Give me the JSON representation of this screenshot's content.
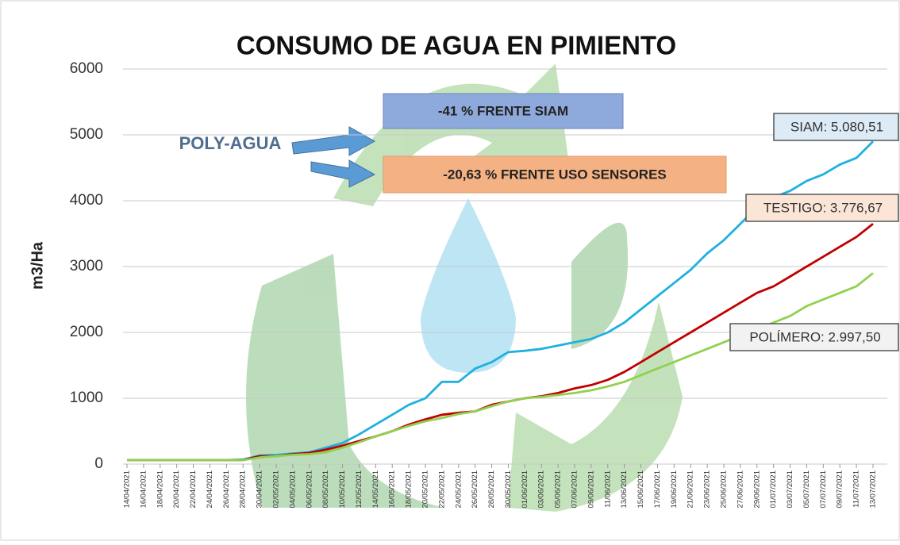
{
  "chart_data": {
    "type": "line",
    "title": "CONSUMO DE AGUA EN PIMIENTO",
    "y_label": "m3/Ha",
    "annotations": [
      "POLY-AGUA",
      "-41 % FRENTE SIAM",
      "-20,63 % FRENTE USO SENSORES"
    ],
    "categories": [
      "14/04/2021",
      "16/04/2021",
      "18/04/2021",
      "20/04/2021",
      "22/04/2021",
      "24/04/2021",
      "26/04/2021",
      "28/04/2021",
      "30/04/2021",
      "02/05/2021",
      "04/05/2021",
      "06/05/2021",
      "08/05/2021",
      "10/05/2021",
      "12/05/2021",
      "14/05/2021",
      "16/05/2021",
      "18/05/2021",
      "20/05/2021",
      "22/05/2021",
      "24/05/2021",
      "26/05/2021",
      "28/05/2021",
      "30/05/2021",
      "01/06/2021",
      "03/06/2021",
      "05/06/2021",
      "07/06/2021",
      "09/06/2021",
      "11/06/2021",
      "13/06/2021",
      "15/06/2021",
      "17/06/2021",
      "19/06/2021",
      "21/06/2021",
      "23/06/2021",
      "25/06/2021",
      "27/06/2021",
      "29/06/2021",
      "01/07/2021",
      "03/07/2021",
      "05/07/2021",
      "07/07/2021",
      "09/07/2021",
      "11/07/2021",
      "13/07/2021"
    ],
    "series": [
      {
        "name": "SIAM: 5.080,51",
        "color": "#1fb0e0",
        "label_fill": "#ddebf7",
        "values": [
          60,
          60,
          60,
          60,
          60,
          60,
          60,
          70,
          130,
          140,
          160,
          180,
          250,
          320,
          450,
          600,
          750,
          900,
          1000,
          1250,
          1250,
          1450,
          1550,
          1700,
          1720,
          1750,
          1800,
          1850,
          1900,
          2000,
          2150,
          2350,
          2550,
          2750,
          2950,
          3200,
          3400,
          3650,
          3900,
          4050,
          4150,
          4300,
          4400,
          4550,
          4650,
          4900
        ]
      },
      {
        "name": "TESTIGO: 3.776,67",
        "color": "#c00000",
        "label_fill": "#fbe5d6",
        "values": [
          60,
          60,
          60,
          60,
          60,
          60,
          60,
          60,
          120,
          120,
          150,
          170,
          220,
          280,
          350,
          420,
          500,
          600,
          680,
          750,
          780,
          800,
          900,
          950,
          1000,
          1030,
          1080,
          1150,
          1200,
          1280,
          1400,
          1550,
          1700,
          1850,
          2000,
          2150,
          2300,
          2450,
          2600,
          2700,
          2850,
          3000,
          3150,
          3300,
          3450,
          3650
        ]
      },
      {
        "name": "POLÍMERO: 2.997,50",
        "color": "#92d050",
        "label_fill": "#f2f2f2",
        "values": [
          60,
          60,
          60,
          60,
          60,
          60,
          60,
          60,
          100,
          120,
          140,
          150,
          180,
          250,
          330,
          420,
          500,
          580,
          650,
          700,
          760,
          800,
          880,
          950,
          1000,
          1020,
          1050,
          1080,
          1120,
          1180,
          1250,
          1350,
          1450,
          1550,
          1650,
          1750,
          1850,
          1950,
          2050,
          2150,
          2250,
          2400,
          2500,
          2600,
          2700,
          2900
        ]
      }
    ],
    "ylim": [
      0,
      6000
    ],
    "yticks": [
      0,
      1000,
      2000,
      3000,
      4000,
      5000,
      6000
    ],
    "grid": true
  }
}
